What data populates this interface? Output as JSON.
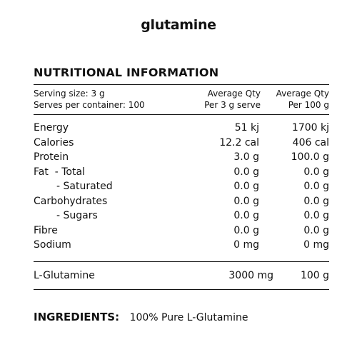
{
  "product": {
    "title": "glutamine"
  },
  "nutrition": {
    "heading": "NUTRITIONAL INFORMATION",
    "serving_size": "Serving size: 3 g",
    "serves_per_container": "Serves per container: 100",
    "col_serve_line1": "Average Qty",
    "col_serve_line2": "Per 3 g serve",
    "col_100_line1": "Average Qty",
    "col_100_line2": "Per 100 g",
    "rows": [
      {
        "name": "Energy",
        "per_serve": "51 kj",
        "per_100": "1700 kj"
      },
      {
        "name": "Calories",
        "per_serve": "12.2 cal",
        "per_100": "406 cal"
      },
      {
        "name": "Protein",
        "per_serve": "3.0 g",
        "per_100": "100.0 g"
      },
      {
        "name": "Fat  - Total",
        "per_serve": "0.0 g",
        "per_100": "0.0 g"
      },
      {
        "name": "- Saturated",
        "per_serve": "0.0 g",
        "per_100": "0.0 g"
      },
      {
        "name": "Carbohydrates",
        "per_serve": "0.0 g",
        "per_100": "0.0 g"
      },
      {
        "name": "- Sugars",
        "per_serve": "0.0 g",
        "per_100": "0.0 g"
      },
      {
        "name": "Fibre",
        "per_serve": "0.0 g",
        "per_100": "0.0 g"
      },
      {
        "name": "Sodium",
        "per_serve": "0 mg",
        "per_100": "0 mg"
      }
    ],
    "l_glutamine": {
      "name": "L-Glutamine",
      "per_serve": "3000 mg",
      "per_100": "100 g"
    }
  },
  "ingredients": {
    "label": "INGREDIENTS:",
    "text": "100% Pure L-Glutamine"
  }
}
